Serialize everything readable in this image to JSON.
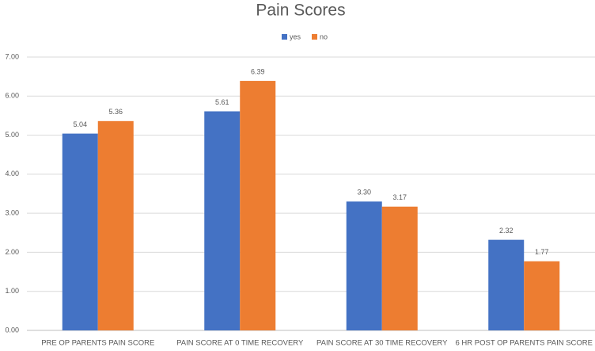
{
  "chart_data": {
    "type": "bar",
    "title": "Pain Scores",
    "categories": [
      "PRE OP PARENTS PAIN SCORE",
      "PAIN SCORE AT 0 TIME RECOVERY",
      "PAIN SCORE AT 30 TIME RECOVERY",
      "6 HR POST OP PARENTS PAIN SCORE"
    ],
    "series": [
      {
        "name": "yes",
        "color": "#4472c4",
        "values": [
          5.04,
          5.61,
          3.3,
          2.32
        ],
        "value_labels": [
          "5.04",
          "5.61",
          "3.30",
          "2.32"
        ]
      },
      {
        "name": "no",
        "color": "#ed7d31",
        "values": [
          5.36,
          6.39,
          3.17,
          1.77
        ],
        "value_labels": [
          "5.36",
          "6.39",
          "3.17",
          "1.77"
        ]
      }
    ],
    "ylim": [
      0,
      7
    ],
    "yticks": [
      {
        "value": 0,
        "label": "0.00"
      },
      {
        "value": 1,
        "label": "1.00"
      },
      {
        "value": 2,
        "label": "2.00"
      },
      {
        "value": 3,
        "label": "3.00"
      },
      {
        "value": 4,
        "label": "4.00"
      },
      {
        "value": 5,
        "label": "5.00"
      },
      {
        "value": 6,
        "label": "6.00"
      },
      {
        "value": 7,
        "label": "7.00"
      }
    ],
    "grid": true,
    "legend": "top"
  }
}
